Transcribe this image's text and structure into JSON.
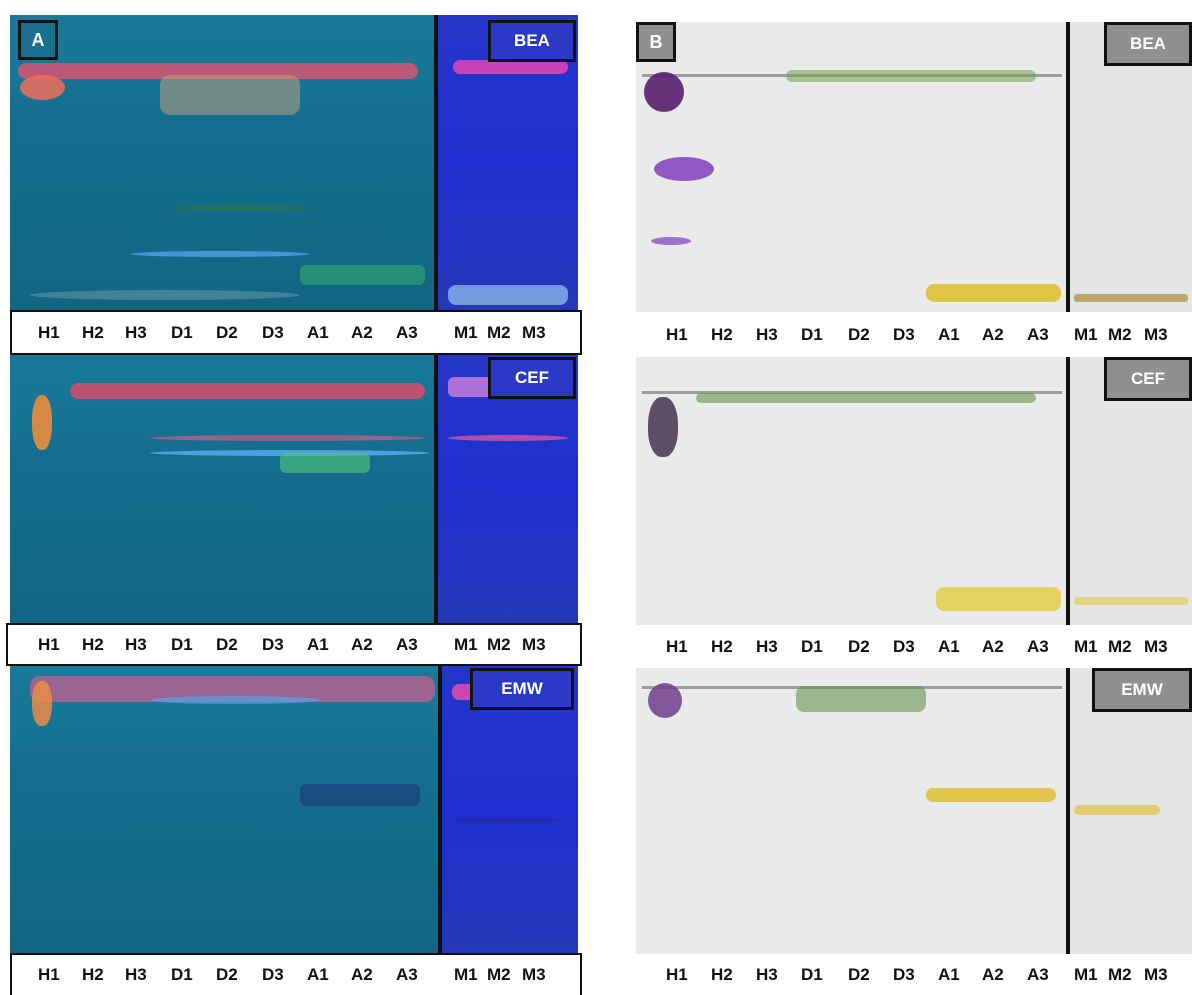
{
  "panel_a": {
    "label": "A",
    "sections": [
      {
        "tag": "BEA",
        "lanes": [
          "H1",
          "H2",
          "H3",
          "D1",
          "D2",
          "D3",
          "A1",
          "A2",
          "A3"
        ],
        "side_lanes": [
          "M1",
          "M2",
          "M3"
        ]
      },
      {
        "tag": "CEF",
        "lanes": [
          "H1",
          "H2",
          "H3",
          "D1",
          "D2",
          "D3",
          "A1",
          "A2",
          "A3"
        ],
        "side_lanes": [
          "M1",
          "M2",
          "M3"
        ]
      },
      {
        "tag": "EMW",
        "lanes": [
          "H1",
          "H2",
          "H3",
          "D1",
          "D2",
          "D3",
          "A1",
          "A2",
          "A3"
        ],
        "side_lanes": [
          "M1",
          "M2",
          "M3"
        ]
      }
    ]
  },
  "panel_b": {
    "label": "B",
    "sections": [
      {
        "tag": "BEA",
        "lanes": [
          "H1",
          "H2",
          "H3",
          "D1",
          "D2",
          "D3",
          "A1",
          "A2",
          "A3"
        ],
        "side_lanes": [
          "M1",
          "M2",
          "M3"
        ]
      },
      {
        "tag": "CEF",
        "lanes": [
          "H1",
          "H2",
          "H3",
          "D1",
          "D2",
          "D3",
          "A1",
          "A2",
          "A3"
        ],
        "side_lanes": [
          "M1",
          "M2",
          "M3"
        ]
      },
      {
        "tag": "EMW",
        "lanes": [
          "H1",
          "H2",
          "H3",
          "D1",
          "D2",
          "D3",
          "A1",
          "A2",
          "A3"
        ],
        "side_lanes": [
          "M1",
          "M2",
          "M3"
        ]
      }
    ]
  },
  "colors": {
    "uv_plate": "#146e8e",
    "uv_side": "#2232c8",
    "vis_plate": "#e9eaea",
    "pink_band": "#f0507a",
    "yellow_band": "#d8c020",
    "purple_band": "#7a2a9a",
    "green_band": "#3a8a2a"
  }
}
